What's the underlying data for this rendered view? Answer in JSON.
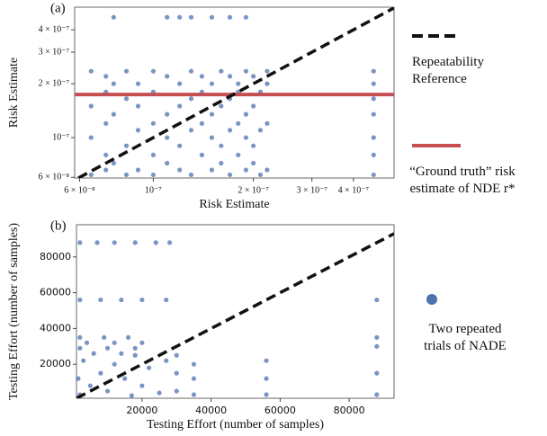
{
  "chart_data": [
    {
      "type": "scatter",
      "panel_label": "(a)",
      "xlabel": "Risk Estimate",
      "ylabel": "Risk Estimate",
      "xscale": "log",
      "yscale": "log",
      "xlim": [
        5.8e-08,
        5.3e-07
      ],
      "ylim": [
        5.95e-08,
        5.35e-07
      ],
      "xticks": [
        {
          "value": 6e-08,
          "label": "6 × 10⁻⁸"
        },
        {
          "value": 1e-07,
          "label": "10⁻⁷"
        },
        {
          "value": 2e-07,
          "label": "2 × 10⁻⁷"
        },
        {
          "value": 3e-07,
          "label": "3 × 10⁻⁷"
        },
        {
          "value": 4e-07,
          "label": "4 × 10⁻⁷"
        }
      ],
      "yticks": [
        {
          "value": 6e-08,
          "label": "6 × 10⁻⁸"
        },
        {
          "value": 1e-07,
          "label": "10⁻⁷"
        },
        {
          "value": 2e-07,
          "label": "2 × 10⁻⁷"
        },
        {
          "value": 3e-07,
          "label": "3 × 10⁻⁷"
        },
        {
          "value": 4e-07,
          "label": "4 × 10⁻⁷"
        }
      ],
      "diagonal": {
        "name": "Repeatability Reference",
        "color": "#111111"
      },
      "hline": {
        "name": "“Ground truth” risk estimate of NDE r*",
        "value": 1.74e-07,
        "color": "#c44e52"
      },
      "series": [
        {
          "name": "Two repeated trials of NADE",
          "color": "#4c72b0",
          "x": [
            6.5e-08,
            6.5e-08,
            6.5e-08,
            6.5e-08,
            7.2e-08,
            7.2e-08,
            7.2e-08,
            7.2e-08,
            7.2e-08,
            7.6e-08,
            7.6e-08,
            7.6e-08,
            7.6e-08,
            8.3e-08,
            8.3e-08,
            8.3e-08,
            8.3e-08,
            9e-08,
            9e-08,
            9e-08,
            9e-08,
            1e-07,
            1e-07,
            1e-07,
            1e-07,
            1e-07,
            1.1e-07,
            1.1e-07,
            1.1e-07,
            1.1e-07,
            1.1e-07,
            1.2e-07,
            1.2e-07,
            1.2e-07,
            1.2e-07,
            1.2e-07,
            1.3e-07,
            1.3e-07,
            1.3e-07,
            1.3e-07,
            1.3e-07,
            1.4e-07,
            1.4e-07,
            1.4e-07,
            1.4e-07,
            1.5e-07,
            1.5e-07,
            1.5e-07,
            1.5e-07,
            1.5e-07,
            1.6e-07,
            1.6e-07,
            1.6e-07,
            1.6e-07,
            1.7e-07,
            1.7e-07,
            1.7e-07,
            1.7e-07,
            1.7e-07,
            1.8e-07,
            1.8e-07,
            1.8e-07,
            1.8e-07,
            1.9e-07,
            1.9e-07,
            1.9e-07,
            1.9e-07,
            1.9e-07,
            2e-07,
            2e-07,
            2e-07,
            2e-07,
            2.1e-07,
            2.1e-07,
            2.1e-07,
            2.2e-07,
            2.2e-07,
            2.2e-07,
            2.2e-07,
            4.6e-07,
            4.6e-07,
            4.6e-07,
            4.6e-07,
            4.6e-07,
            4.6e-07,
            4.6e-07
          ],
          "values": [
            6.2e-08,
            1e-07,
            1.5e-07,
            2.35e-07,
            6.6e-08,
            8e-08,
            1.2e-07,
            1.8e-07,
            2.2e-07,
            4.7e-07,
            7.2e-08,
            1.35e-07,
            2e-07,
            6.2e-08,
            9e-08,
            1.65e-07,
            2.35e-07,
            6.6e-08,
            1.1e-07,
            1.5e-07,
            2e-07,
            6.2e-08,
            8e-08,
            1.2e-07,
            1.8e-07,
            2.35e-07,
            7.2e-08,
            1e-07,
            1.35e-07,
            2.2e-07,
            4.7e-07,
            6.6e-08,
            9e-08,
            1.5e-07,
            2e-07,
            4.7e-07,
            6.2e-08,
            1.1e-07,
            1.65e-07,
            2.35e-07,
            4.7e-07,
            8e-08,
            1.2e-07,
            1.8e-07,
            2.2e-07,
            6.6e-08,
            1e-07,
            1.35e-07,
            2e-07,
            4.7e-07,
            7.2e-08,
            9e-08,
            1.5e-07,
            2.35e-07,
            6.2e-08,
            1.1e-07,
            1.65e-07,
            2.2e-07,
            4.7e-07,
            8e-08,
            1.2e-07,
            1.8e-07,
            2e-07,
            6.6e-08,
            1e-07,
            1.35e-07,
            2.35e-07,
            4.7e-07,
            7.2e-08,
            9e-08,
            1.5e-07,
            2.2e-07,
            6.2e-08,
            1.1e-07,
            1.8e-07,
            6.6e-08,
            1.2e-07,
            2e-07,
            2.35e-07,
            6.2e-08,
            8e-08,
            1e-07,
            1.35e-07,
            1.65e-07,
            2e-07,
            2.35e-07
          ]
        }
      ]
    },
    {
      "type": "scatter",
      "panel_label": "(b)",
      "xlabel": "Testing Effort (number of samples)",
      "ylabel": "Testing Effort (number of samples)",
      "xscale": "linear",
      "yscale": "linear",
      "xlim": [
        1000,
        93000
      ],
      "ylim": [
        1000,
        98000
      ],
      "xticks": [
        20000,
        40000,
        60000,
        80000
      ],
      "yticks": [
        20000,
        40000,
        60000,
        80000
      ],
      "diagonal": {
        "color": "#111111"
      },
      "series": [
        {
          "color": "#4c72b0",
          "x": [
            2000,
            5000,
            8000,
            3000,
            10000,
            12000,
            15000,
            18000,
            20000,
            22000,
            25000,
            27000,
            6000,
            14000,
            1500,
            17000,
            2000,
            10000,
            18000,
            4000,
            12000,
            20000,
            2000,
            9000,
            16000,
            2000,
            8000,
            14000,
            20000,
            27000,
            2000,
            7000,
            12000,
            18000,
            24000,
            28000,
            30000,
            30000,
            30000,
            35000,
            35000,
            35000,
            56000,
            56000,
            56000,
            88000,
            88000,
            88000,
            88000,
            88000
          ],
          "values": [
            3000,
            8000,
            15000,
            22000,
            5000,
            20000,
            12000,
            25000,
            8000,
            18000,
            4000,
            22000,
            26000,
            26000,
            12000,
            2500,
            29000,
            29000,
            29000,
            32000,
            32000,
            32000,
            35000,
            35000,
            35000,
            56000,
            56000,
            56000,
            56000,
            56000,
            88000,
            88000,
            88000,
            88000,
            88000,
            88000,
            5000,
            15000,
            25000,
            3000,
            12000,
            20000,
            3000,
            12000,
            22000,
            3000,
            15000,
            30000,
            35000,
            56000
          ]
        }
      ]
    }
  ]
}
